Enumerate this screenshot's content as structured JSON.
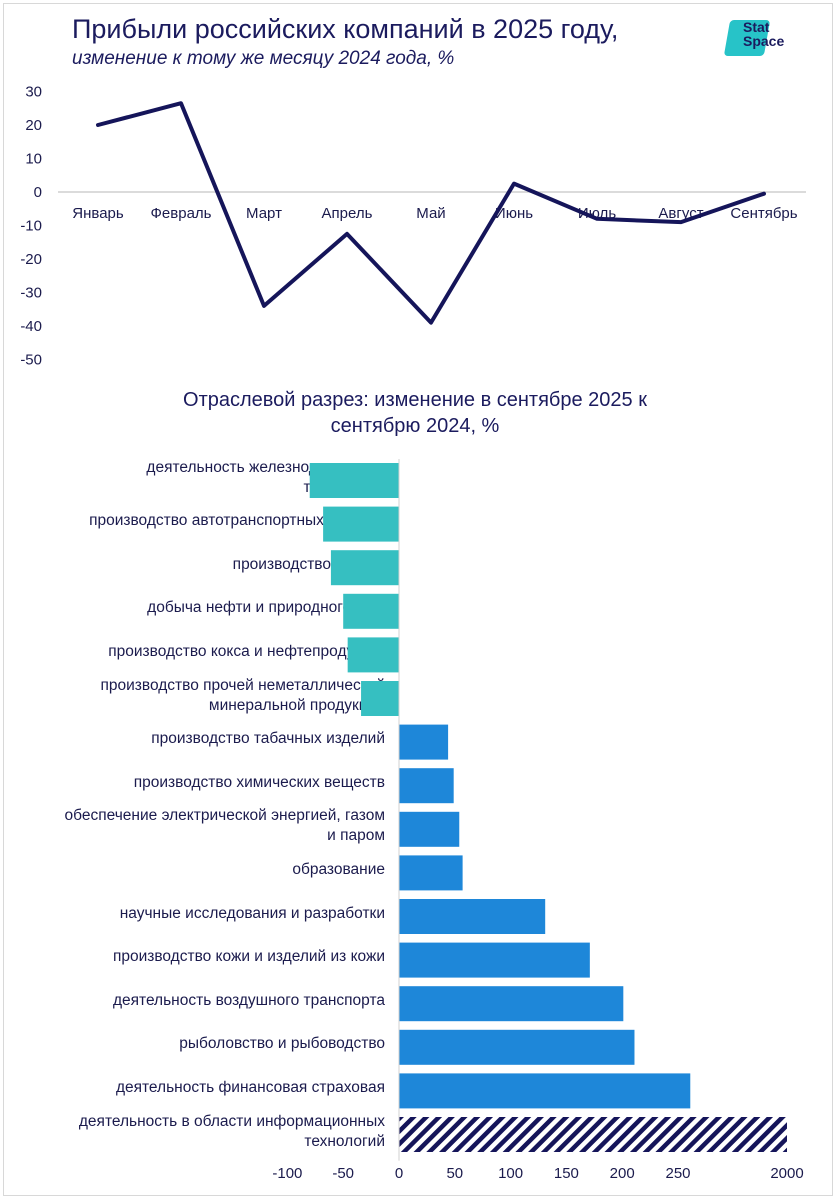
{
  "header": {
    "title": "Прибыли российских компаний в 2025 году,",
    "subtitle": "изменение к тому же месяцу 2024 года, %"
  },
  "logo": {
    "line1": "Stat",
    "line2": "Space",
    "accent": "#27c3c8"
  },
  "colors": {
    "line": "#15155a",
    "negative": "#36bfc1",
    "positive": "#1e87d9",
    "hatch": "#15155a"
  },
  "chart_data": [
    {
      "type": "line",
      "title": "Прибыли российских компаний в 2025 году,",
      "subtitle": "изменение к тому же месяцу 2024 года, %",
      "categories": [
        "Январь",
        "Февраль",
        "Март",
        "Апрель",
        "Май",
        "Июнь",
        "Июль",
        "Август",
        "Сентябрь"
      ],
      "values": [
        20,
        26.5,
        -34,
        -12.5,
        -39,
        2.5,
        -8,
        -9,
        -0.5
      ],
      "ylim": [
        -50,
        30
      ],
      "yticks": [
        "30",
        "20",
        "10",
        "0",
        "-10",
        "-20",
        "-30",
        "-40",
        "-50"
      ]
    },
    {
      "type": "bar",
      "orientation": "horizontal",
      "title_line1": "Отраслевой разрез: изменение в сентябре 2025 к",
      "title_line2": "сентябрю 2024, %",
      "categories": [
        [
          "деятельность железнодорожного",
          "транспорта"
        ],
        [
          "производство автотранспортных средств"
        ],
        [
          "производство бумаги"
        ],
        [
          "добыча нефти и природного газа"
        ],
        [
          "производство кокса и нефтепродуктов"
        ],
        [
          "производство прочей неметаллической",
          "минеральной продукции"
        ],
        [
          "производство табачных изделий"
        ],
        [
          "производство химических веществ"
        ],
        [
          "обеспечение электрической энергией, газом",
          "и паром"
        ],
        [
          "образование"
        ],
        [
          "научные исследования и разработки"
        ],
        [
          "производство кожи и изделий из кожи"
        ],
        [
          "деятельность воздушного транспорта"
        ],
        [
          "рыболовство и рыбоводство"
        ],
        [
          "деятельность финансовая страховая"
        ],
        [
          "деятельность в области информационных",
          "технологий"
        ]
      ],
      "values": [
        -80,
        -68,
        -61,
        -50,
        -46,
        -34,
        44,
        49,
        54,
        57,
        131,
        171,
        201,
        211,
        261,
        2000
      ],
      "xticks": [
        "-100",
        "-50",
        "0",
        "50",
        "100",
        "150",
        "200",
        "250",
        "2000"
      ],
      "axis_break_value": 2000
    }
  ]
}
